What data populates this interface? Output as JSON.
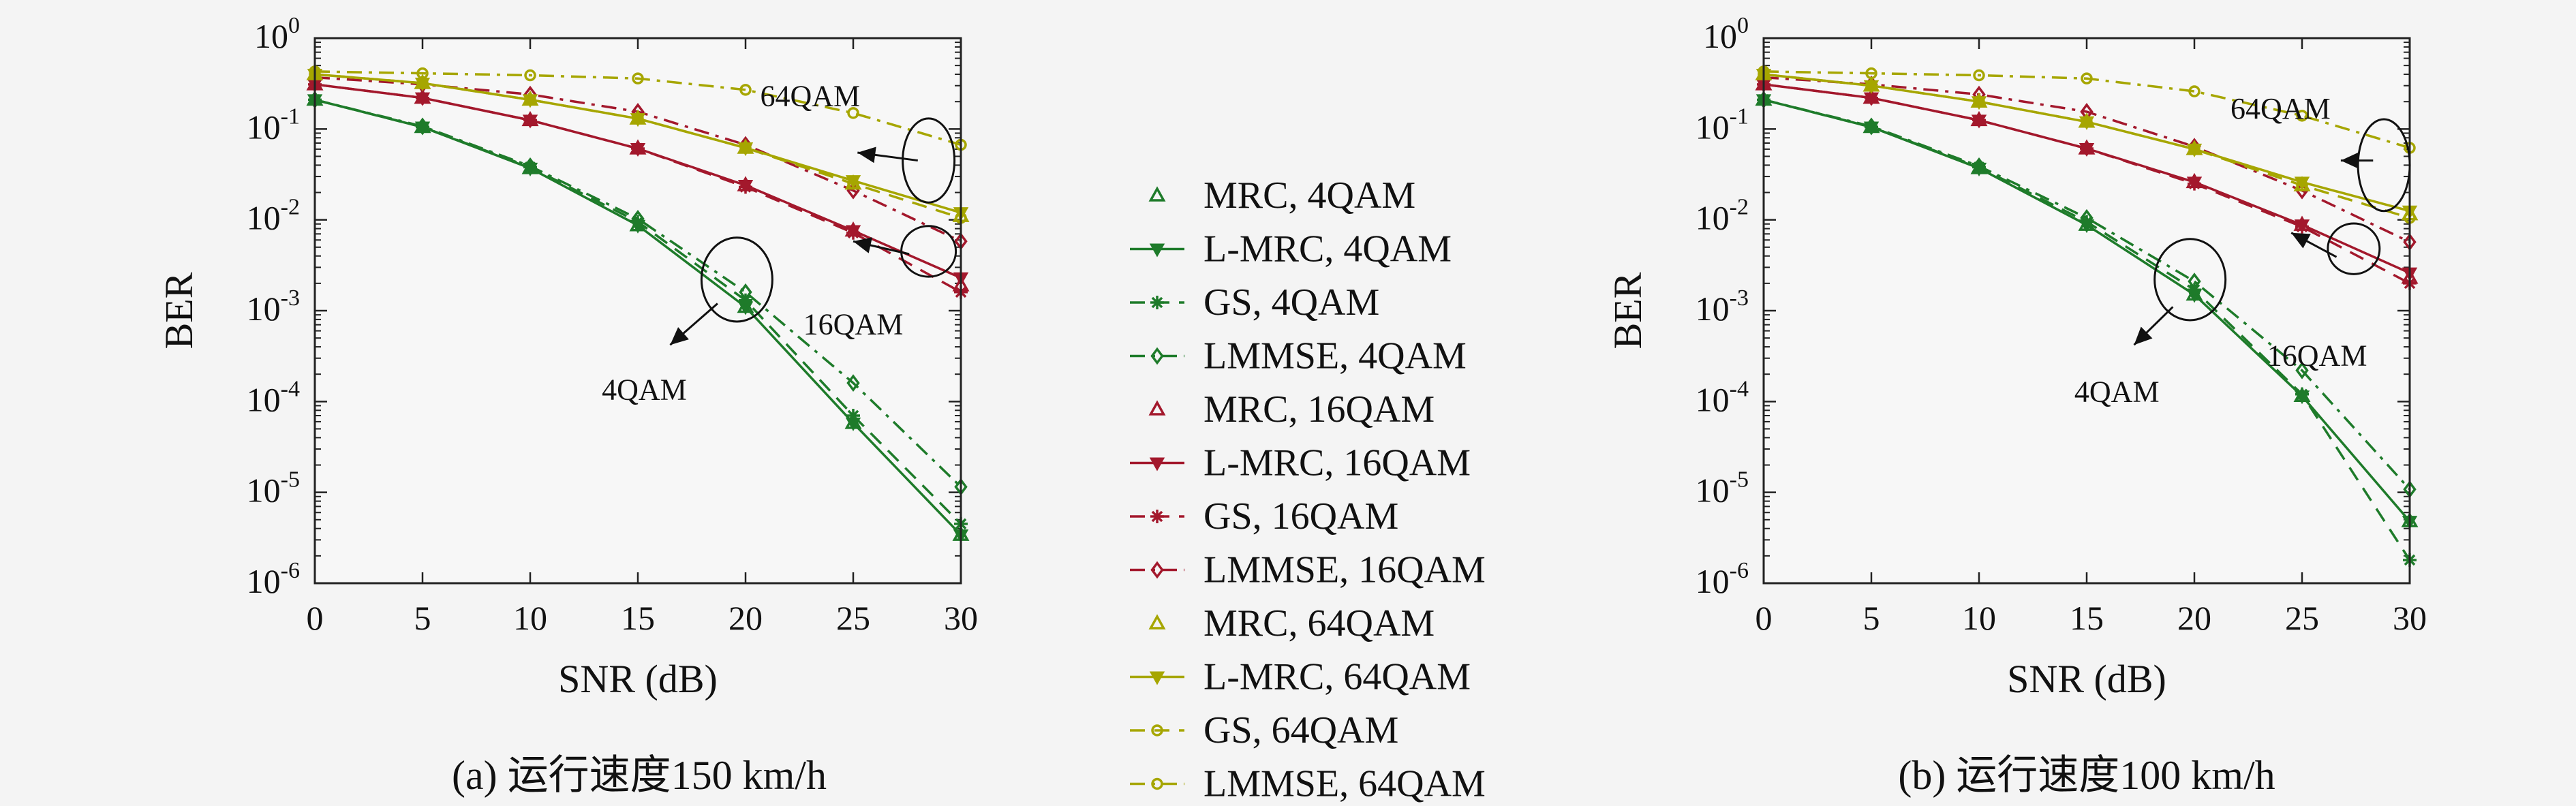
{
  "series_styles": {
    "MRC": {
      "dash": "none",
      "marker": "triangle-up",
      "line": false
    },
    "L-MRC": {
      "dash": "none",
      "marker": "triangle-down",
      "line": true
    },
    "GS": {
      "dash": "dashed",
      "marker": "star",
      "line": true
    },
    "LMMSE": {
      "dash": "dashdot",
      "marker": "diamond",
      "line": true
    }
  },
  "colors": {
    "4QAM": "#1e7b2a",
    "16QAM": "#a3182c",
    "64QAM": "#a6a600"
  },
  "legend": [
    {
      "label": "MRC, 4QAM",
      "scheme": "MRC",
      "mod": "4QAM"
    },
    {
      "label": "L-MRC, 4QAM",
      "scheme": "L-MRC",
      "mod": "4QAM"
    },
    {
      "label": "GS, 4QAM",
      "scheme": "GS",
      "mod": "4QAM"
    },
    {
      "label": "LMMSE, 4QAM",
      "scheme": "LMMSE",
      "mod": "4QAM"
    },
    {
      "label": "MRC, 16QAM",
      "scheme": "MRC",
      "mod": "16QAM"
    },
    {
      "label": "L-MRC, 16QAM",
      "scheme": "L-MRC",
      "mod": "16QAM"
    },
    {
      "label": "GS, 16QAM",
      "scheme": "GS",
      "mod": "16QAM"
    },
    {
      "label": "LMMSE, 16QAM",
      "scheme": "LMMSE",
      "mod": "16QAM"
    },
    {
      "label": "MRC, 64QAM",
      "scheme": "MRC",
      "mod": "64QAM"
    },
    {
      "label": "L-MRC, 64QAM",
      "scheme": "L-MRC",
      "mod": "64QAM"
    },
    {
      "label": "GS, 64QAM",
      "scheme": "GS",
      "mod": "64QAM"
    },
    {
      "label": "LMMSE, 64QAM",
      "scheme": "LMMSE",
      "mod": "64QAM"
    }
  ],
  "chart_data": [
    {
      "type": "line",
      "caption": "(a) 运行速度150 km/h",
      "xlabel": "SNR (dB)",
      "ylabel": "BER",
      "x": [
        0,
        5,
        10,
        15,
        20,
        25,
        30
      ],
      "xticks": [
        "0",
        "5",
        "10",
        "15",
        "20",
        "25",
        "30"
      ],
      "xlim": [
        0,
        30
      ],
      "ylim": [
        1e-06,
        1
      ],
      "yscale": "log",
      "yticks": [
        {
          "base": "10",
          "exp": "0"
        },
        {
          "base": "10",
          "exp": "-1"
        },
        {
          "base": "10",
          "exp": "-2"
        },
        {
          "base": "10",
          "exp": "-3"
        },
        {
          "base": "10",
          "exp": "-4"
        },
        {
          "base": "10",
          "exp": "-5"
        },
        {
          "base": "10",
          "exp": "-6"
        }
      ],
      "annotations": [
        "64QAM",
        "16QAM",
        "4QAM"
      ],
      "series": [
        {
          "name": "MRC, 4QAM",
          "values": [
            0.21,
            0.105,
            0.037,
            0.0087,
            0.0011,
            5.8e-05,
            3.4e-06
          ]
        },
        {
          "name": "L-MRC, 4QAM",
          "values": [
            0.21,
            0.105,
            0.037,
            0.0087,
            0.0011,
            5.8e-05,
            3.4e-06
          ]
        },
        {
          "name": "GS, 4QAM",
          "values": [
            0.21,
            0.105,
            0.038,
            0.0095,
            0.0013,
            7e-05,
            4.5e-06
          ]
        },
        {
          "name": "LMMSE, 4QAM",
          "values": [
            0.21,
            0.107,
            0.039,
            0.0103,
            0.0016,
            0.00016,
            1.15e-05
          ]
        },
        {
          "name": "MRC, 16QAM",
          "values": [
            0.31,
            0.22,
            0.125,
            0.061,
            0.024,
            0.0076,
            0.0019
          ]
        },
        {
          "name": "L-MRC, 16QAM",
          "values": [
            0.31,
            0.22,
            0.125,
            0.061,
            0.024,
            0.0076,
            0.0023
          ]
        },
        {
          "name": "GS, 16QAM",
          "values": [
            0.31,
            0.22,
            0.125,
            0.061,
            0.023,
            0.0072,
            0.0016
          ]
        },
        {
          "name": "LMMSE, 16QAM",
          "values": [
            0.37,
            0.31,
            0.24,
            0.155,
            0.067,
            0.021,
            0.0058
          ]
        },
        {
          "name": "MRC, 64QAM",
          "values": [
            0.4,
            0.32,
            0.21,
            0.13,
            0.062,
            0.025,
            0.011
          ]
        },
        {
          "name": "L-MRC, 64QAM",
          "values": [
            0.4,
            0.32,
            0.21,
            0.13,
            0.062,
            0.027,
            0.012
          ]
        },
        {
          "name": "GS, 64QAM",
          "values": [
            0.4,
            0.32,
            0.21,
            0.13,
            0.062,
            0.025,
            0.0105
          ]
        },
        {
          "name": "LMMSE, 64QAM",
          "values": [
            0.43,
            0.41,
            0.39,
            0.36,
            0.27,
            0.15,
            0.067
          ]
        }
      ]
    },
    {
      "type": "line",
      "caption": "(b) 运行速度100 km/h",
      "xlabel": "SNR (dB)",
      "ylabel": "BER",
      "x": [
        0,
        5,
        10,
        15,
        20,
        25,
        30
      ],
      "xticks": [
        "0",
        "5",
        "10",
        "15",
        "20",
        "25",
        "30"
      ],
      "xlim": [
        0,
        30
      ],
      "ylim": [
        1e-06,
        1
      ],
      "yscale": "log",
      "yticks": [
        {
          "base": "10",
          "exp": "0"
        },
        {
          "base": "10",
          "exp": "-1"
        },
        {
          "base": "10",
          "exp": "-2"
        },
        {
          "base": "10",
          "exp": "-3"
        },
        {
          "base": "10",
          "exp": "-4"
        },
        {
          "base": "10",
          "exp": "-5"
        },
        {
          "base": "10",
          "exp": "-6"
        }
      ],
      "annotations": [
        "64QAM",
        "16QAM",
        "4QAM"
      ],
      "series": [
        {
          "name": "MRC, 4QAM",
          "values": [
            0.21,
            0.105,
            0.037,
            0.0088,
            0.0015,
            0.000115,
            4.8e-06
          ]
        },
        {
          "name": "L-MRC, 4QAM",
          "values": [
            0.21,
            0.105,
            0.037,
            0.0088,
            0.0015,
            0.000115,
            4.8e-06
          ]
        },
        {
          "name": "GS, 4QAM",
          "values": [
            0.21,
            0.105,
            0.038,
            0.0095,
            0.0017,
            0.00012,
            1.8e-06
          ]
        },
        {
          "name": "LMMSE, 4QAM",
          "values": [
            0.21,
            0.107,
            0.039,
            0.0105,
            0.0021,
            0.00022,
            1.08e-05
          ]
        },
        {
          "name": "MRC, 16QAM",
          "values": [
            0.31,
            0.22,
            0.125,
            0.061,
            0.026,
            0.0088,
            0.0023
          ]
        },
        {
          "name": "L-MRC, 16QAM",
          "values": [
            0.31,
            0.22,
            0.125,
            0.061,
            0.026,
            0.0088,
            0.0026
          ]
        },
        {
          "name": "GS, 16QAM",
          "values": [
            0.31,
            0.22,
            0.125,
            0.061,
            0.025,
            0.0084,
            0.002
          ]
        },
        {
          "name": "LMMSE, 16QAM",
          "values": [
            0.37,
            0.31,
            0.24,
            0.155,
            0.064,
            0.021,
            0.0057
          ]
        },
        {
          "name": "MRC, 64QAM",
          "values": [
            0.4,
            0.3,
            0.2,
            0.12,
            0.06,
            0.024,
            0.0115
          ]
        },
        {
          "name": "L-MRC, 64QAM",
          "values": [
            0.4,
            0.3,
            0.2,
            0.12,
            0.06,
            0.026,
            0.0125
          ]
        },
        {
          "name": "GS, 64QAM",
          "values": [
            0.4,
            0.3,
            0.2,
            0.12,
            0.06,
            0.024,
            0.0105
          ]
        },
        {
          "name": "LMMSE, 64QAM",
          "values": [
            0.43,
            0.41,
            0.39,
            0.36,
            0.26,
            0.14,
            0.062
          ]
        }
      ]
    }
  ]
}
